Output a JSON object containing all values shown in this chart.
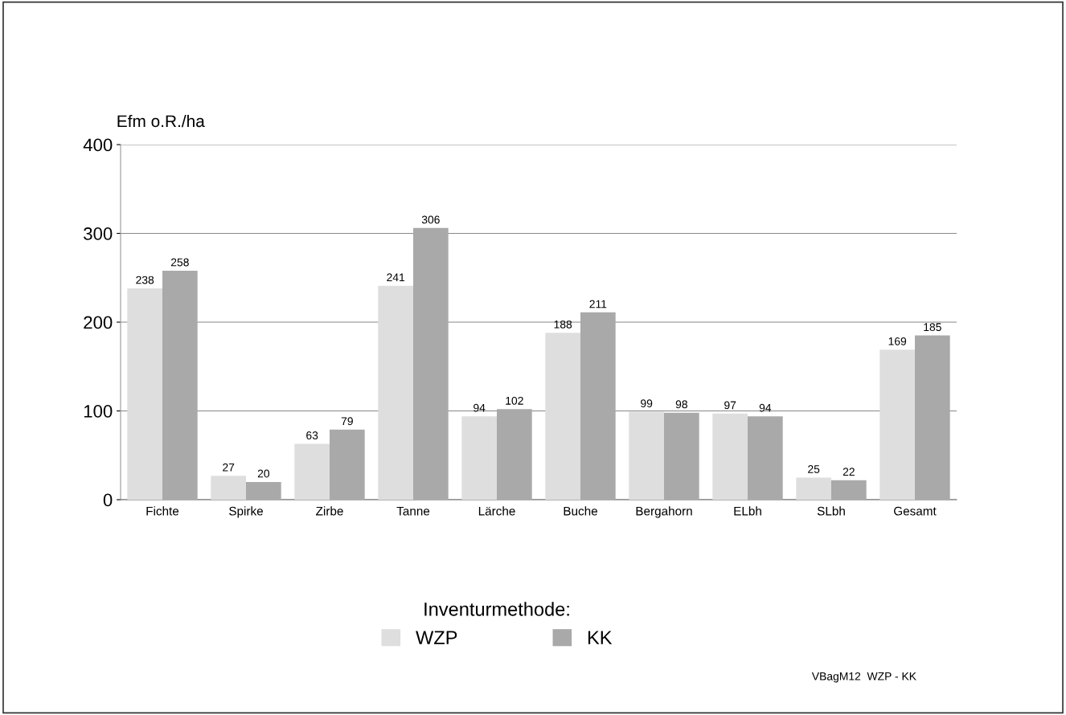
{
  "chart_data": {
    "type": "bar",
    "ylabel": "Efm o.R./ha",
    "categories": [
      "Fichte",
      "Spirke",
      "Zirbe",
      "Tanne",
      "Lärche",
      "Buche",
      "Bergahorn",
      "ELbh",
      "SLbh",
      "Gesamt"
    ],
    "series": [
      {
        "name": "WZP",
        "color": "#dedede",
        "values": [
          238,
          27,
          63,
          241,
          94,
          188,
          99,
          97,
          25,
          169
        ]
      },
      {
        "name": "KK",
        "color": "#a9a9a9",
        "values": [
          258,
          20,
          79,
          306,
          102,
          211,
          98,
          94,
          22,
          185
        ]
      }
    ],
    "ylim": [
      0,
      400
    ],
    "yticks": [
      0,
      100,
      200,
      300,
      400
    ],
    "grid": "y",
    "data_labels": true,
    "legend": "bottom",
    "legend_title": "Inventurmethode:",
    "annotations": [
      "VBagM12  WZP - KK"
    ]
  }
}
